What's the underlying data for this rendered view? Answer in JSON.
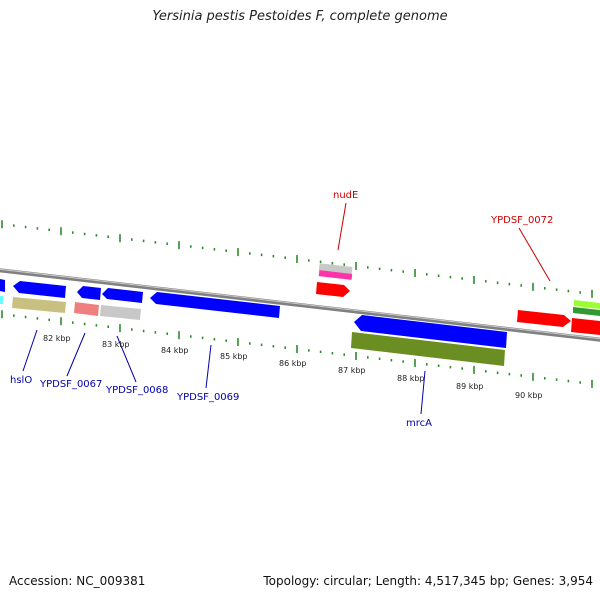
{
  "title": "Yersinia pestis Pestoides F, complete genome",
  "footer": {
    "accession": "Accession: NC_009381",
    "summary": "Topology: circular; Length: 4,517,345 bp; Genes: 3,954"
  },
  "colors": {
    "backbone": "#8a8a8a",
    "tick": "#2e8b2e",
    "forward_label": "#cc0000",
    "reverse_label": "#0000aa"
  },
  "kbp_labels": [
    "82 kbp",
    "83 kbp",
    "84 kbp",
    "85 kbp",
    "86 kbp",
    "87 kbp",
    "88 kbp",
    "89 kbp",
    "90 kbp"
  ],
  "gene_labels": [
    {
      "text": "nudE",
      "strand": "forward"
    },
    {
      "text": "YPDSF_0072",
      "strand": "forward"
    },
    {
      "text": "hslO",
      "strand": "reverse"
    },
    {
      "text": "YPDSF_0067",
      "strand": "reverse"
    },
    {
      "text": "YPDSF_0068",
      "strand": "reverse"
    },
    {
      "text": "YPDSF_0069",
      "strand": "reverse"
    },
    {
      "text": "mrcA",
      "strand": "reverse"
    }
  ]
}
